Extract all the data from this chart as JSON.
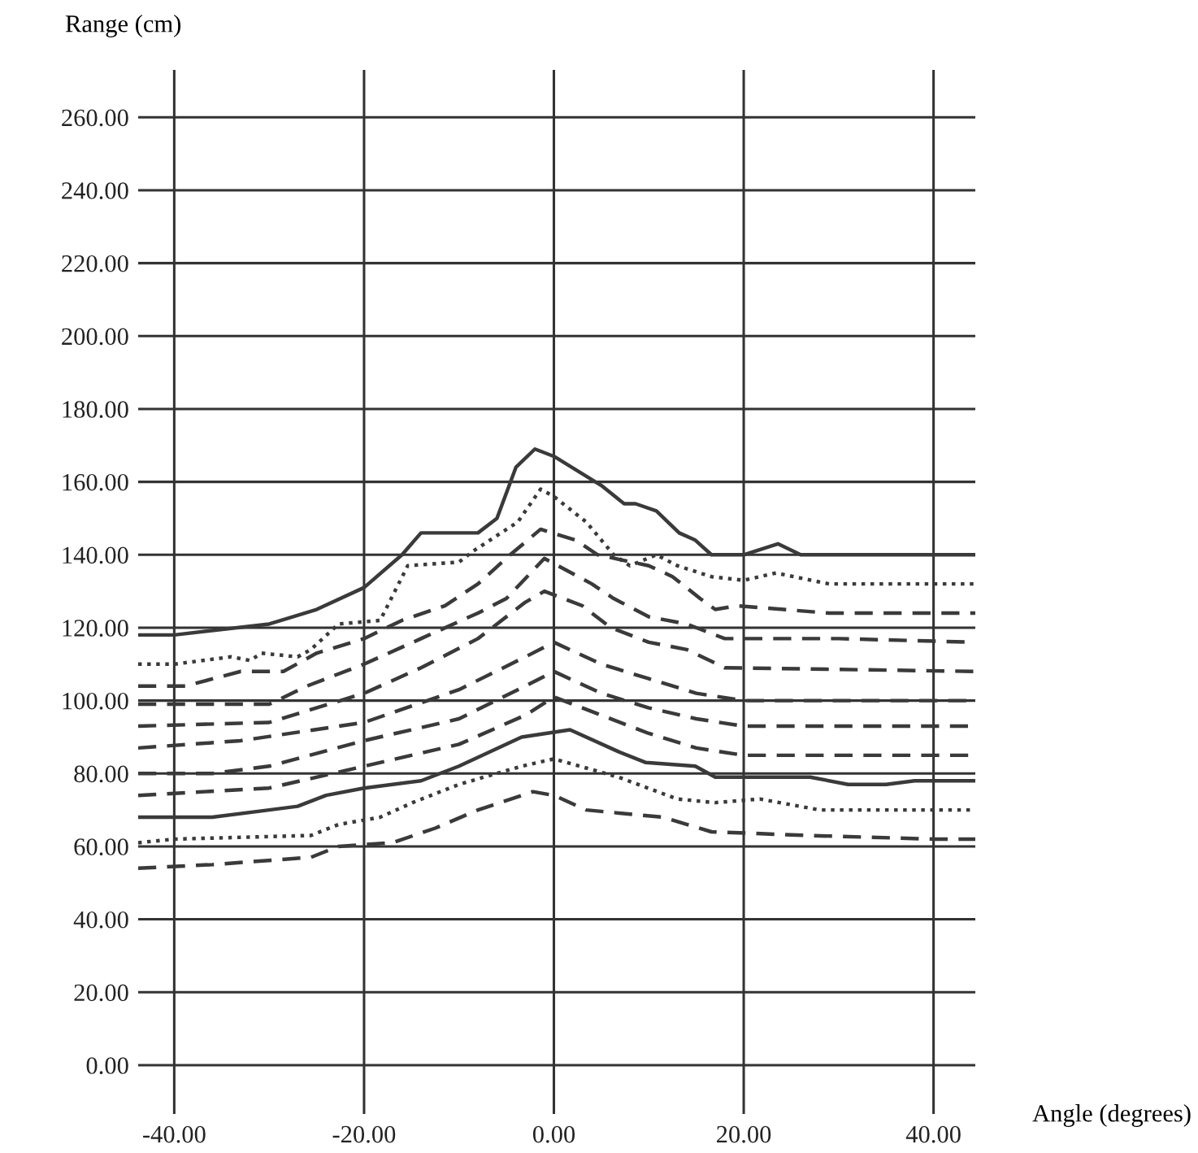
{
  "chart_data": {
    "type": "line",
    "xlabel": "Angle (degrees)",
    "ylabel": "Range (cm)",
    "xlim": [
      -43.8,
      44.4
    ],
    "ylim": [
      -13.4,
      273
    ],
    "xticks": [
      {
        "value": -40,
        "label": "-40.00"
      },
      {
        "value": -20,
        "label": "-20.00"
      },
      {
        "value": 0,
        "label": "0.00"
      },
      {
        "value": 20,
        "label": "20.00"
      },
      {
        "value": 40,
        "label": "40.00"
      }
    ],
    "yticks": [
      {
        "value": 0,
        "label": "0.00"
      },
      {
        "value": 20,
        "label": "20.00"
      },
      {
        "value": 40,
        "label": "40.00"
      },
      {
        "value": 60,
        "label": "60.00"
      },
      {
        "value": 80,
        "label": "80.00"
      },
      {
        "value": 100,
        "label": "100.00"
      },
      {
        "value": 120,
        "label": "120.00"
      },
      {
        "value": 140,
        "label": "140.00"
      },
      {
        "value": 160,
        "label": "160.00"
      },
      {
        "value": 180,
        "label": "180.00"
      },
      {
        "value": 200,
        "label": "200.00"
      },
      {
        "value": 220,
        "label": "220.00"
      },
      {
        "value": 240,
        "label": "240.00"
      },
      {
        "value": 260,
        "label": "260.00"
      }
    ],
    "grid": true,
    "marker": "none",
    "series": [
      {
        "color": "#3a3a3a",
        "line_style": "solid",
        "x": [
          -43.8,
          -40,
          -30,
          -25,
          -20,
          -16,
          -14,
          -8,
          -6,
          -4,
          -2,
          0,
          5,
          7.4,
          8.6,
          10.8,
          13.2,
          14.9,
          16.6,
          20,
          23.6,
          26,
          44.4
        ],
        "values": [
          118,
          118,
          121,
          125,
          131,
          140,
          146,
          146,
          150,
          164,
          169,
          167,
          159,
          154,
          154,
          152,
          146,
          144,
          140,
          140,
          143,
          140,
          140
        ]
      },
      {
        "color": "#3a3a3a",
        "line_style": "dotted",
        "x": [
          -43.8,
          -40,
          -34,
          -32,
          -30.8,
          -27,
          -25.6,
          -22.7,
          -18.3,
          -15.4,
          -10,
          -8.5,
          -3.8,
          -1.4,
          0,
          3.4,
          6.3,
          8,
          10.8,
          13,
          16.6,
          20,
          23.4,
          29,
          44.4
        ],
        "values": [
          110,
          110,
          112,
          111,
          113,
          112,
          114,
          121,
          122,
          137,
          138,
          141,
          149,
          158,
          156,
          149,
          140,
          137,
          140,
          137,
          134,
          133,
          135,
          132,
          132
        ]
      },
      {
        "color": "#3a3a3a",
        "line_style": "dashed",
        "x": [
          -43.8,
          -38.8,
          -33,
          -28.5,
          -25,
          -20,
          -16,
          -11.5,
          -8,
          -4.6,
          -1.4,
          2.3,
          4.6,
          10,
          12.5,
          15.4,
          17,
          19.3,
          29,
          44.4
        ],
        "values": [
          104,
          104,
          108,
          108,
          113,
          117,
          122,
          126,
          132,
          140,
          147,
          144,
          140,
          137,
          134,
          128,
          125,
          126,
          124,
          124
        ]
      },
      {
        "color": "#3a3a3a",
        "line_style": "dashed",
        "x": [
          -43.8,
          -30,
          -26,
          -20,
          -14,
          -8,
          -5,
          -1,
          4,
          6.3,
          10,
          14,
          18,
          30,
          44.4
        ],
        "values": [
          99,
          99,
          104,
          110,
          117,
          124,
          128,
          139,
          132,
          128,
          123,
          121,
          117,
          117,
          116
        ]
      },
      {
        "color": "#3a3a3a",
        "line_style": "dashed",
        "x": [
          -43.8,
          -30,
          -20,
          -14,
          -8,
          -3,
          -1,
          3,
          6,
          10,
          14,
          18,
          44.4
        ],
        "values": [
          93,
          94,
          102,
          109,
          117,
          127,
          130,
          126,
          120,
          116,
          114,
          109,
          108
        ]
      },
      {
        "color": "#3a3a3a",
        "line_style": "dashed",
        "x": [
          -43.8,
          -33,
          -20,
          -10,
          -3,
          0,
          5,
          10,
          15,
          20,
          44.4
        ],
        "values": [
          87,
          89,
          94,
          103,
          112,
          116,
          110,
          106,
          102,
          100,
          100
        ]
      },
      {
        "color": "#3a3a3a",
        "line_style": "dashed",
        "x": [
          -43.8,
          -36,
          -30,
          -20,
          -10,
          -3,
          0,
          5,
          10,
          15,
          20,
          44.4
        ],
        "values": [
          80,
          80,
          82,
          89,
          95,
          104,
          108,
          102,
          98,
          95,
          93,
          93
        ]
      },
      {
        "color": "#3a3a3a",
        "line_style": "dashed",
        "x": [
          -43.8,
          -30,
          -20,
          -10,
          -3,
          0,
          5,
          10,
          15,
          20,
          44.4
        ],
        "values": [
          74,
          76,
          82,
          88,
          96,
          101,
          96,
          91,
          87,
          85,
          85
        ]
      },
      {
        "color": "#3a3a3a",
        "line_style": "solid",
        "x": [
          -43.8,
          -36,
          -30,
          -27,
          -24,
          -20,
          -14,
          -10,
          -3.4,
          1.7,
          6.8,
          9.7,
          14.9,
          17,
          27,
          31,
          35,
          38,
          44.4
        ],
        "values": [
          68,
          68,
          70,
          71,
          74,
          76,
          78,
          82,
          90,
          92,
          86,
          83,
          82,
          79,
          79,
          77,
          77,
          78,
          78
        ]
      },
      {
        "color": "#3a3a3a",
        "line_style": "dotted",
        "x": [
          -43.8,
          -40,
          -25.6,
          -22.7,
          -18.3,
          -14.9,
          -10,
          -3.4,
          0,
          6.8,
          13,
          17,
          21.7,
          28,
          44.4
        ],
        "values": [
          61,
          62,
          63,
          66,
          68,
          72,
          77,
          82,
          84,
          79,
          73,
          72,
          73,
          70,
          70
        ]
      },
      {
        "color": "#3a3a3a",
        "line_style": "dashed",
        "x": [
          -43.8,
          -36,
          -25.6,
          -22.7,
          -17,
          -12.5,
          -8,
          -2.2,
          0,
          3.4,
          11.5,
          16.6,
          26.8,
          40,
          44.4
        ],
        "values": [
          54,
          55,
          57,
          60,
          61,
          65,
          70,
          75,
          74,
          70,
          68,
          64,
          63,
          62,
          62
        ]
      }
    ]
  }
}
